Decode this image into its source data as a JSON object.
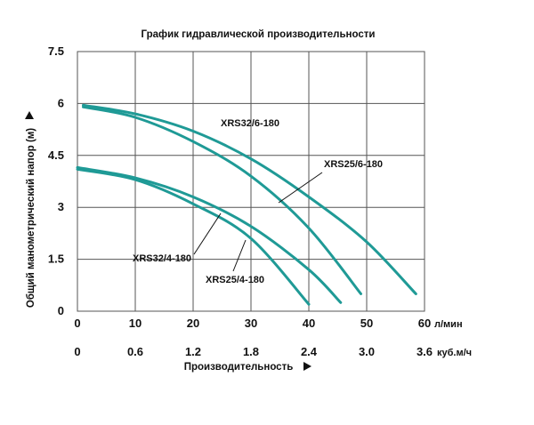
{
  "chart_data": {
    "type": "line",
    "title": "График гидравлической производительности",
    "ylabel": "Общий манометрический напор (м)",
    "xlabel": "Производительность",
    "x_unit": "л/мин",
    "x2_unit": "куб.м/ч",
    "ylim": [
      0,
      7.5
    ],
    "xlim": [
      0,
      60
    ],
    "y_ticks": [
      "0",
      "1.5",
      "3",
      "4.5",
      "6",
      "7.5"
    ],
    "x_ticks": [
      "0",
      "10",
      "20",
      "30",
      "40",
      "50",
      "60"
    ],
    "x2_ticks": [
      "0",
      "0.6",
      "1.2",
      "1.8",
      "2.4",
      "3.0",
      "3.6"
    ],
    "grid": true,
    "series": [
      {
        "name": "XRS32/6-180",
        "x": [
          1,
          10,
          20,
          30,
          40,
          50,
          58.5
        ],
        "y": [
          5.95,
          5.7,
          5.2,
          4.4,
          3.3,
          2.0,
          0.5
        ]
      },
      {
        "name": "XRS25/6-180",
        "x": [
          1,
          10,
          20,
          30,
          40,
          49
        ],
        "y": [
          5.9,
          5.6,
          4.9,
          3.9,
          2.4,
          0.5
        ]
      },
      {
        "name": "XRS32/4-180",
        "x": [
          0,
          10,
          20,
          30,
          40,
          45.5
        ],
        "y": [
          4.15,
          3.85,
          3.3,
          2.45,
          1.2,
          0.25
        ]
      },
      {
        "name": "XRS25/4-180",
        "x": [
          0,
          10,
          20,
          30,
          40
        ],
        "y": [
          4.1,
          3.8,
          3.1,
          2.1,
          0.2
        ]
      }
    ]
  }
}
